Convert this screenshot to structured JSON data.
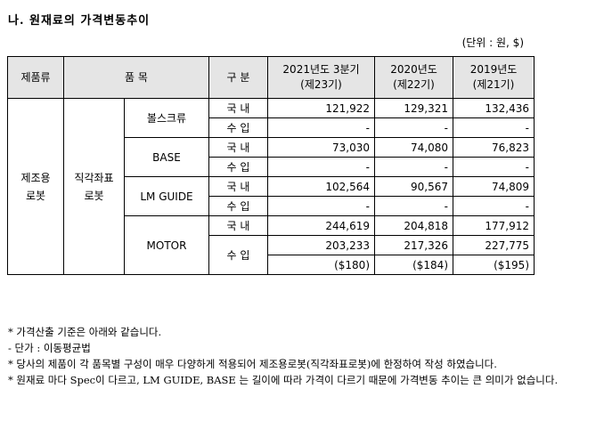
{
  "title": "나. 원재료의 가격변동추이",
  "unit": "(단위 : 원, $)",
  "table": {
    "headers": {
      "category": "제품류",
      "item": "품 목",
      "division": "구 분",
      "p1": [
        "2021년도 3분기",
        "(제23기)"
      ],
      "p2": [
        "2020년도",
        "(제22기)"
      ],
      "p3": [
        "2019년도",
        "(제21기)"
      ]
    },
    "category": [
      "제조용",
      "로봇"
    ],
    "subcategory": [
      "직각좌표",
      "로봇"
    ],
    "rows": [
      {
        "item": "볼스크류",
        "division": "국 내",
        "values": [
          "121,922",
          "129,321",
          "132,436"
        ]
      },
      {
        "division": "수 입",
        "values": [
          "-",
          "-",
          "-"
        ]
      },
      {
        "item": "BASE",
        "division": "국 내",
        "values": [
          "73,030",
          "74,080",
          "76,823"
        ]
      },
      {
        "division": "수 입",
        "values": [
          "-",
          "-",
          "-"
        ]
      },
      {
        "item": "LM GUIDE",
        "division": "국 내",
        "values": [
          "102,564",
          "90,567",
          "74,809"
        ]
      },
      {
        "division": "수 입",
        "values": [
          "-",
          "-",
          "-"
        ]
      },
      {
        "item": "MOTOR",
        "division": "국 내",
        "values": [
          "244,619",
          "204,818",
          "177,912"
        ]
      },
      {
        "division": "수 입",
        "values": [
          "203,233",
          "217,326",
          "227,775"
        ]
      },
      {
        "values": [
          "($180)",
          "($184)",
          "($195)"
        ]
      }
    ]
  },
  "notes": [
    "* 가격산출 기준은 아래와 같습니다.",
    "- 단가 : 이동평균법",
    "* 당사의 제품이 각 품목별 구성이 매우 다양하게 적용되어 제조용로봇(직각좌표로봇)에 한정하여 작성 하였습니다.",
    "* 원재료 마다 Spec이 다르고, LM GUIDE, BASE 는 길이에 따라 가격이 다르기 때문에 가격변동 추이는 큰 의미가 없습니다."
  ]
}
